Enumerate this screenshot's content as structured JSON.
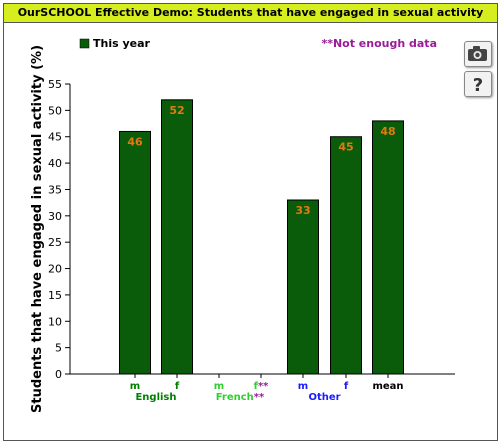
{
  "title": "OurSCHOOL Effective Demo: Students that have engaged in sexual activity",
  "colors": {
    "title_bg": "#d6ee1e",
    "bar": "#0a5c0a",
    "bar_label": "#e07a10",
    "english": "#008000",
    "french": "#33cc33",
    "other": "#1a1aff",
    "mean": "#000000",
    "note": "#9a1a9a"
  },
  "toolbar": {
    "export_icon": "camera-icon",
    "help_icon": "question-mark-icon",
    "help_glyph": "?"
  },
  "chart_data": {
    "type": "bar",
    "ylabel": "Students that have engaged in sexual activity (%)",
    "ylim": [
      0,
      55
    ],
    "yticks": [
      0,
      5,
      10,
      15,
      20,
      25,
      30,
      35,
      40,
      45,
      50,
      55
    ],
    "legend": {
      "label": "This year",
      "placement": "top-left"
    },
    "note": "**Not enough data",
    "categories": [
      "m",
      "f",
      "m",
      "f**",
      "m",
      "f",
      "mean"
    ],
    "values": [
      46,
      52,
      null,
      null,
      33,
      45,
      48
    ],
    "value_labels": [
      "46",
      "52",
      "",
      "",
      "33",
      "45",
      "48"
    ],
    "category_groups": [
      "English",
      "English",
      "French",
      "French",
      "Other",
      "Other",
      "mean"
    ],
    "groups": [
      {
        "name": "English",
        "label": "English"
      },
      {
        "name": "French",
        "label": "French**"
      },
      {
        "name": "Other",
        "label": "Other"
      }
    ]
  }
}
